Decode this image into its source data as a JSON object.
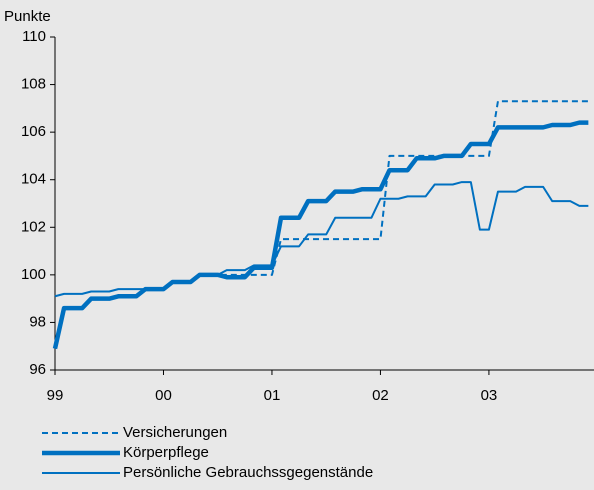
{
  "chart_data": {
    "type": "line",
    "y_label": "Punkte",
    "categories": [
      "99",
      null,
      null,
      null,
      null,
      null,
      null,
      null,
      null,
      null,
      null,
      null,
      "00",
      null,
      null,
      null,
      null,
      null,
      null,
      null,
      null,
      null,
      null,
      null,
      "01",
      null,
      null,
      null,
      null,
      null,
      null,
      null,
      null,
      null,
      null,
      null,
      "02",
      null,
      null,
      null,
      null,
      null,
      null,
      null,
      null,
      null,
      null,
      null,
      "03",
      null,
      null,
      null,
      null,
      null,
      null,
      null,
      null,
      null,
      null,
      null
    ],
    "ylim": [
      96,
      110
    ],
    "yticks": [
      96,
      98,
      100,
      102,
      104,
      106,
      108,
      110
    ],
    "series": [
      {
        "name": "Versicherungen",
        "color": "#0070c0",
        "style": "dashed",
        "values": [
          96.9,
          98.6,
          98.6,
          98.6,
          99.0,
          99.0,
          99.0,
          99.1,
          99.1,
          99.1,
          99.4,
          99.4,
          99.4,
          99.7,
          99.7,
          99.7,
          100.0,
          100.0,
          100.0,
          100.0,
          100.0,
          100.0,
          100.0,
          100.0,
          100.0,
          101.5,
          101.5,
          101.5,
          101.5,
          101.5,
          101.5,
          101.5,
          101.5,
          101.5,
          101.5,
          101.5,
          101.5,
          105.0,
          105.0,
          105.0,
          105.0,
          105.0,
          105.0,
          105.0,
          105.0,
          105.0,
          105.0,
          105.0,
          105.0,
          107.3,
          107.3,
          107.3,
          107.3,
          107.3,
          107.3,
          107.3,
          107.3,
          107.3,
          107.3,
          107.3
        ]
      },
      {
        "name": "Körperpflege",
        "color": "#0070c0",
        "style": "thick",
        "values": [
          96.9,
          98.6,
          98.6,
          98.6,
          99.0,
          99.0,
          99.0,
          99.1,
          99.1,
          99.1,
          99.4,
          99.4,
          99.4,
          99.7,
          99.7,
          99.7,
          100.0,
          100.0,
          100.0,
          99.9,
          99.9,
          99.9,
          100.3,
          100.3,
          100.3,
          102.4,
          102.4,
          102.4,
          103.1,
          103.1,
          103.1,
          103.5,
          103.5,
          103.5,
          103.6,
          103.6,
          103.6,
          104.4,
          104.4,
          104.4,
          104.9,
          104.9,
          104.9,
          105.0,
          105.0,
          105.0,
          105.5,
          105.5,
          105.5,
          106.2,
          106.2,
          106.2,
          106.2,
          106.2,
          106.2,
          106.3,
          106.3,
          106.3,
          106.4,
          106.4
        ]
      },
      {
        "name": "Persönliche Gebrauchssgegenstände",
        "color": "#0070c0",
        "style": "thin",
        "values": [
          99.1,
          99.2,
          99.2,
          99.2,
          99.3,
          99.3,
          99.3,
          99.4,
          99.4,
          99.4,
          99.4,
          99.4,
          99.4,
          99.7,
          99.7,
          99.7,
          100.0,
          100.0,
          100.0,
          100.2,
          100.2,
          100.2,
          100.4,
          100.4,
          100.4,
          101.2,
          101.2,
          101.2,
          101.7,
          101.7,
          101.7,
          102.4,
          102.4,
          102.4,
          102.4,
          102.4,
          103.2,
          103.2,
          103.2,
          103.3,
          103.3,
          103.3,
          103.8,
          103.8,
          103.8,
          103.9,
          103.9,
          101.9,
          101.9,
          103.5,
          103.5,
          103.5,
          103.7,
          103.7,
          103.7,
          103.1,
          103.1,
          103.1,
          102.9,
          102.9
        ]
      }
    ]
  }
}
